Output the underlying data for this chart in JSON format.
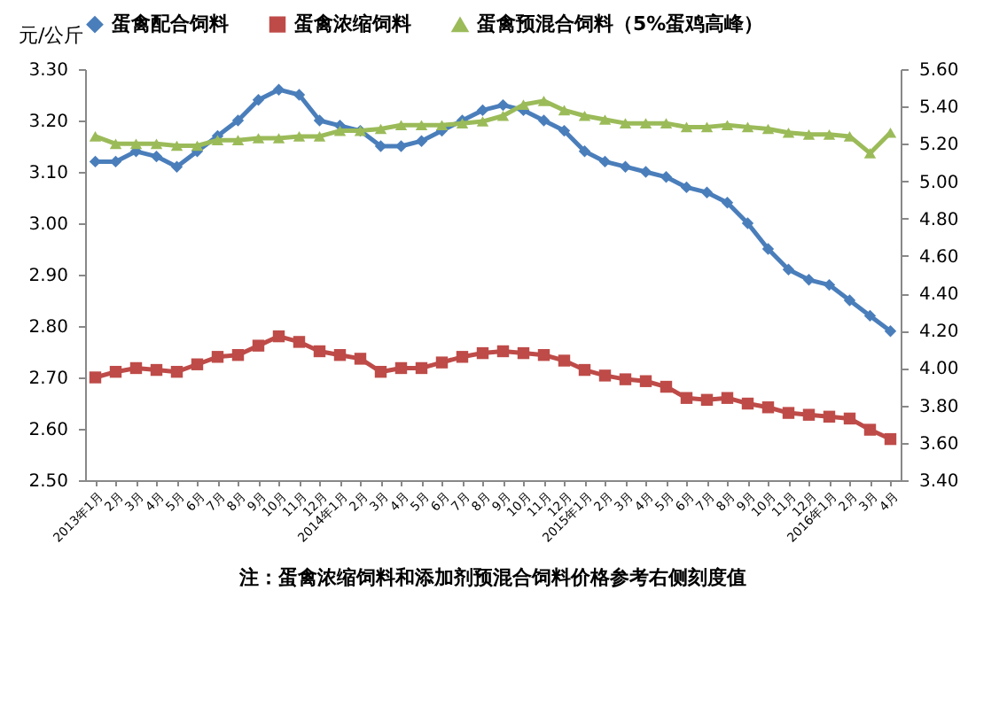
{
  "chart_data": {
    "type": "line",
    "ylabel": "元/公斤",
    "categories": [
      "2013年1月",
      "2月",
      "3月",
      "4月",
      "5月",
      "6月",
      "7月",
      "8月",
      "9月",
      "10月",
      "11月",
      "12月",
      "2014年1月",
      "2月",
      "3月",
      "4月",
      "5月",
      "6月",
      "7月",
      "8月",
      "9月",
      "10月",
      "11月",
      "12月",
      "2015年1月",
      "2月",
      "3月",
      "4月",
      "5月",
      "6月",
      "7月",
      "8月",
      "9月",
      "10月",
      "11月",
      "12月",
      "2016年1月",
      "2月",
      "3月",
      "4月"
    ],
    "series": [
      {
        "name": "蛋禽配合饲料",
        "color": "#4a7ebb",
        "marker": "diamond",
        "values": [
          3.12,
          3.12,
          3.14,
          3.13,
          3.11,
          3.14,
          3.17,
          3.2,
          3.24,
          3.26,
          3.25,
          3.2,
          3.19,
          3.18,
          3.15,
          3.15,
          3.16,
          3.18,
          3.2,
          3.22,
          3.23,
          3.22,
          3.2,
          3.18,
          3.14,
          3.12,
          3.11,
          3.1,
          3.09,
          3.07,
          3.06,
          3.04,
          3.0,
          2.95,
          2.91,
          2.89,
          2.88,
          2.85,
          2.82,
          2.79
        ]
      },
      {
        "name": "蛋禽浓缩饲料",
        "color": "#be4b48",
        "marker": "square",
        "axis": "y2",
        "values": [
          3.95,
          3.98,
          4.0,
          3.99,
          3.98,
          4.02,
          4.06,
          4.07,
          4.12,
          4.17,
          4.14,
          4.09,
          4.07,
          4.05,
          3.98,
          4.0,
          4.0,
          4.03,
          4.06,
          4.08,
          4.09,
          4.08,
          4.07,
          4.04,
          3.99,
          3.96,
          3.94,
          3.93,
          3.9,
          3.84,
          3.83,
          3.84,
          3.81,
          3.79,
          3.76,
          3.75,
          3.74,
          3.73,
          3.67,
          3.62
        ]
      },
      {
        "name": "蛋禽预混合饲料（5%蛋鸡高峰）",
        "color": "#9bbb59",
        "marker": "triangle",
        "axis": "y2",
        "values": [
          5.24,
          5.2,
          5.2,
          5.2,
          5.19,
          5.19,
          5.22,
          5.22,
          5.23,
          5.23,
          5.24,
          5.24,
          5.27,
          5.27,
          5.28,
          5.3,
          5.3,
          5.3,
          5.31,
          5.32,
          5.35,
          5.41,
          5.43,
          5.38,
          5.35,
          5.33,
          5.31,
          5.31,
          5.31,
          5.29,
          5.29,
          5.3,
          5.29,
          5.28,
          5.26,
          5.25,
          5.25,
          5.24,
          5.15,
          5.26
        ]
      }
    ],
    "ylim": [
      2.5,
      3.3
    ],
    "yticks": [
      {
        "value": 2.5,
        "label": "2.50"
      },
      {
        "value": 2.6,
        "label": "2.60"
      },
      {
        "value": 2.7,
        "label": "2.70"
      },
      {
        "value": 2.8,
        "label": "2.80"
      },
      {
        "value": 2.9,
        "label": "2.90"
      },
      {
        "value": 3.0,
        "label": "3.00"
      },
      {
        "value": 3.1,
        "label": "3.10"
      },
      {
        "value": 3.2,
        "label": "3.20"
      },
      {
        "value": 3.3,
        "label": "3.30"
      }
    ],
    "y2lim": [
      3.4,
      5.6
    ],
    "y2ticks": [
      {
        "value": 3.4,
        "label": "3.40"
      },
      {
        "value": 3.6,
        "label": "3.60"
      },
      {
        "value": 3.8,
        "label": "3.80"
      },
      {
        "value": 4.0,
        "label": "4.00"
      },
      {
        "value": 4.2,
        "label": "4.20"
      },
      {
        "value": 4.4,
        "label": "4.40"
      },
      {
        "value": 4.6,
        "label": "4.60"
      },
      {
        "value": 4.8,
        "label": "4.80"
      },
      {
        "value": 5.0,
        "label": "5.00"
      },
      {
        "value": 5.2,
        "label": "5.20"
      },
      {
        "value": 5.4,
        "label": "5.40"
      },
      {
        "value": 5.6,
        "label": "5.60"
      }
    ],
    "legend": "top",
    "grid": false,
    "annotations": [
      "注：蛋禽浓缩饲料和添加剂预混合饲料价格参考右侧刻度值"
    ]
  }
}
